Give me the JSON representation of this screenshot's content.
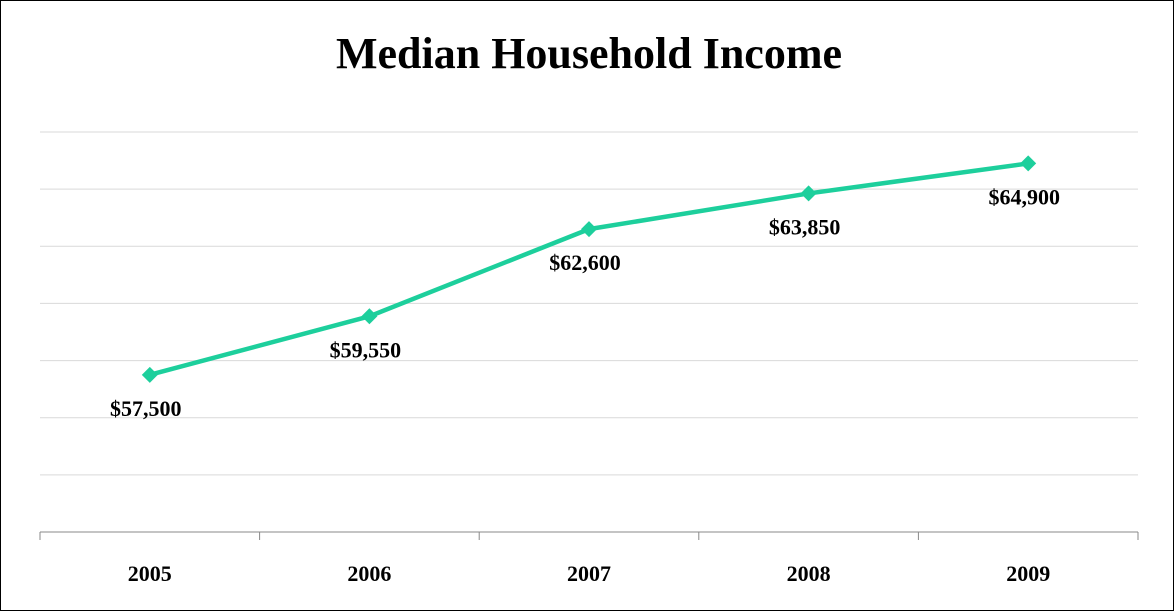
{
  "chart_data": {
    "type": "line",
    "title": "Median Household Income",
    "categories": [
      "2005",
      "2006",
      "2007",
      "2008",
      "2009"
    ],
    "series": [
      {
        "name": "Median Household Income",
        "color": "#1dcf9c",
        "values": [
          57500,
          59550,
          62600,
          63850,
          64900
        ],
        "value_labels": [
          "$57,500",
          "$59,550",
          "$62,600",
          "$63,850",
          "$64,900"
        ]
      }
    ],
    "ylim": [
      52000,
      66000
    ],
    "yticks": [
      52000,
      54000,
      56000,
      58000,
      60000,
      62000,
      64000,
      66000
    ],
    "grid": true
  }
}
